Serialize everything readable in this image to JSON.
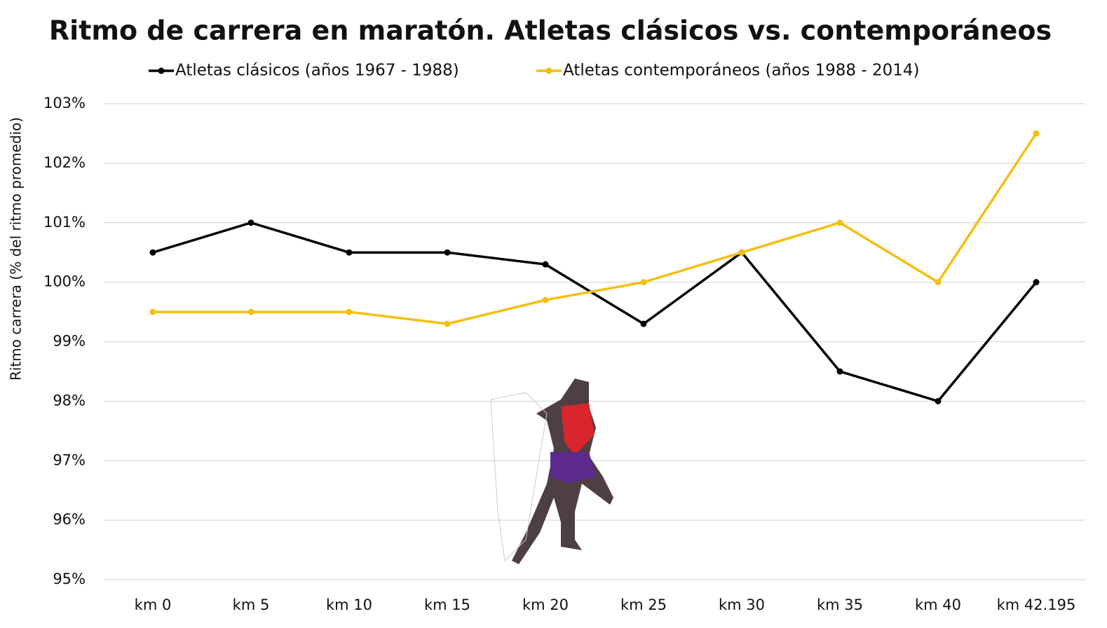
{
  "chart_data": {
    "type": "line",
    "title": "Ritmo de carrera en maratón. Atletas clásicos vs. contemporáneos",
    "y_label": "Ritmo carrera (% del ritmo promedio)",
    "categories": [
      "km 0",
      "km 5",
      "km 10",
      "km 15",
      "km 20",
      "km 25",
      "km 30",
      "km 35",
      "km 40",
      "km 42.195"
    ],
    "series": [
      {
        "name": "Atletas clásicos (años 1967 - 1988)",
        "color": "#000000",
        "values": [
          100.5,
          101,
          100.5,
          100.5,
          100.3,
          99.3,
          100.5,
          98.5,
          98,
          100
        ]
      },
      {
        "name": "Atletas contemporáneos (años 1988 - 2014)",
        "color": "#f5bf0f",
        "values": [
          99.5,
          99.5,
          99.5,
          99.3,
          99.7,
          100,
          100.5,
          101,
          100,
          102.5
        ]
      }
    ],
    "ylim": [
      95,
      103
    ],
    "yticks": [
      {
        "value": 95,
        "label": "95%"
      },
      {
        "value": 96,
        "label": "96%"
      },
      {
        "value": 97,
        "label": "97%"
      },
      {
        "value": 98,
        "label": "98%"
      },
      {
        "value": 99,
        "label": "99%"
      },
      {
        "value": 100,
        "label": "100%"
      },
      {
        "value": 101,
        "label": "101%"
      },
      {
        "value": 102,
        "label": "102%"
      },
      {
        "value": 103,
        "label": "103%"
      }
    ],
    "grid": true,
    "legend": "top"
  }
}
